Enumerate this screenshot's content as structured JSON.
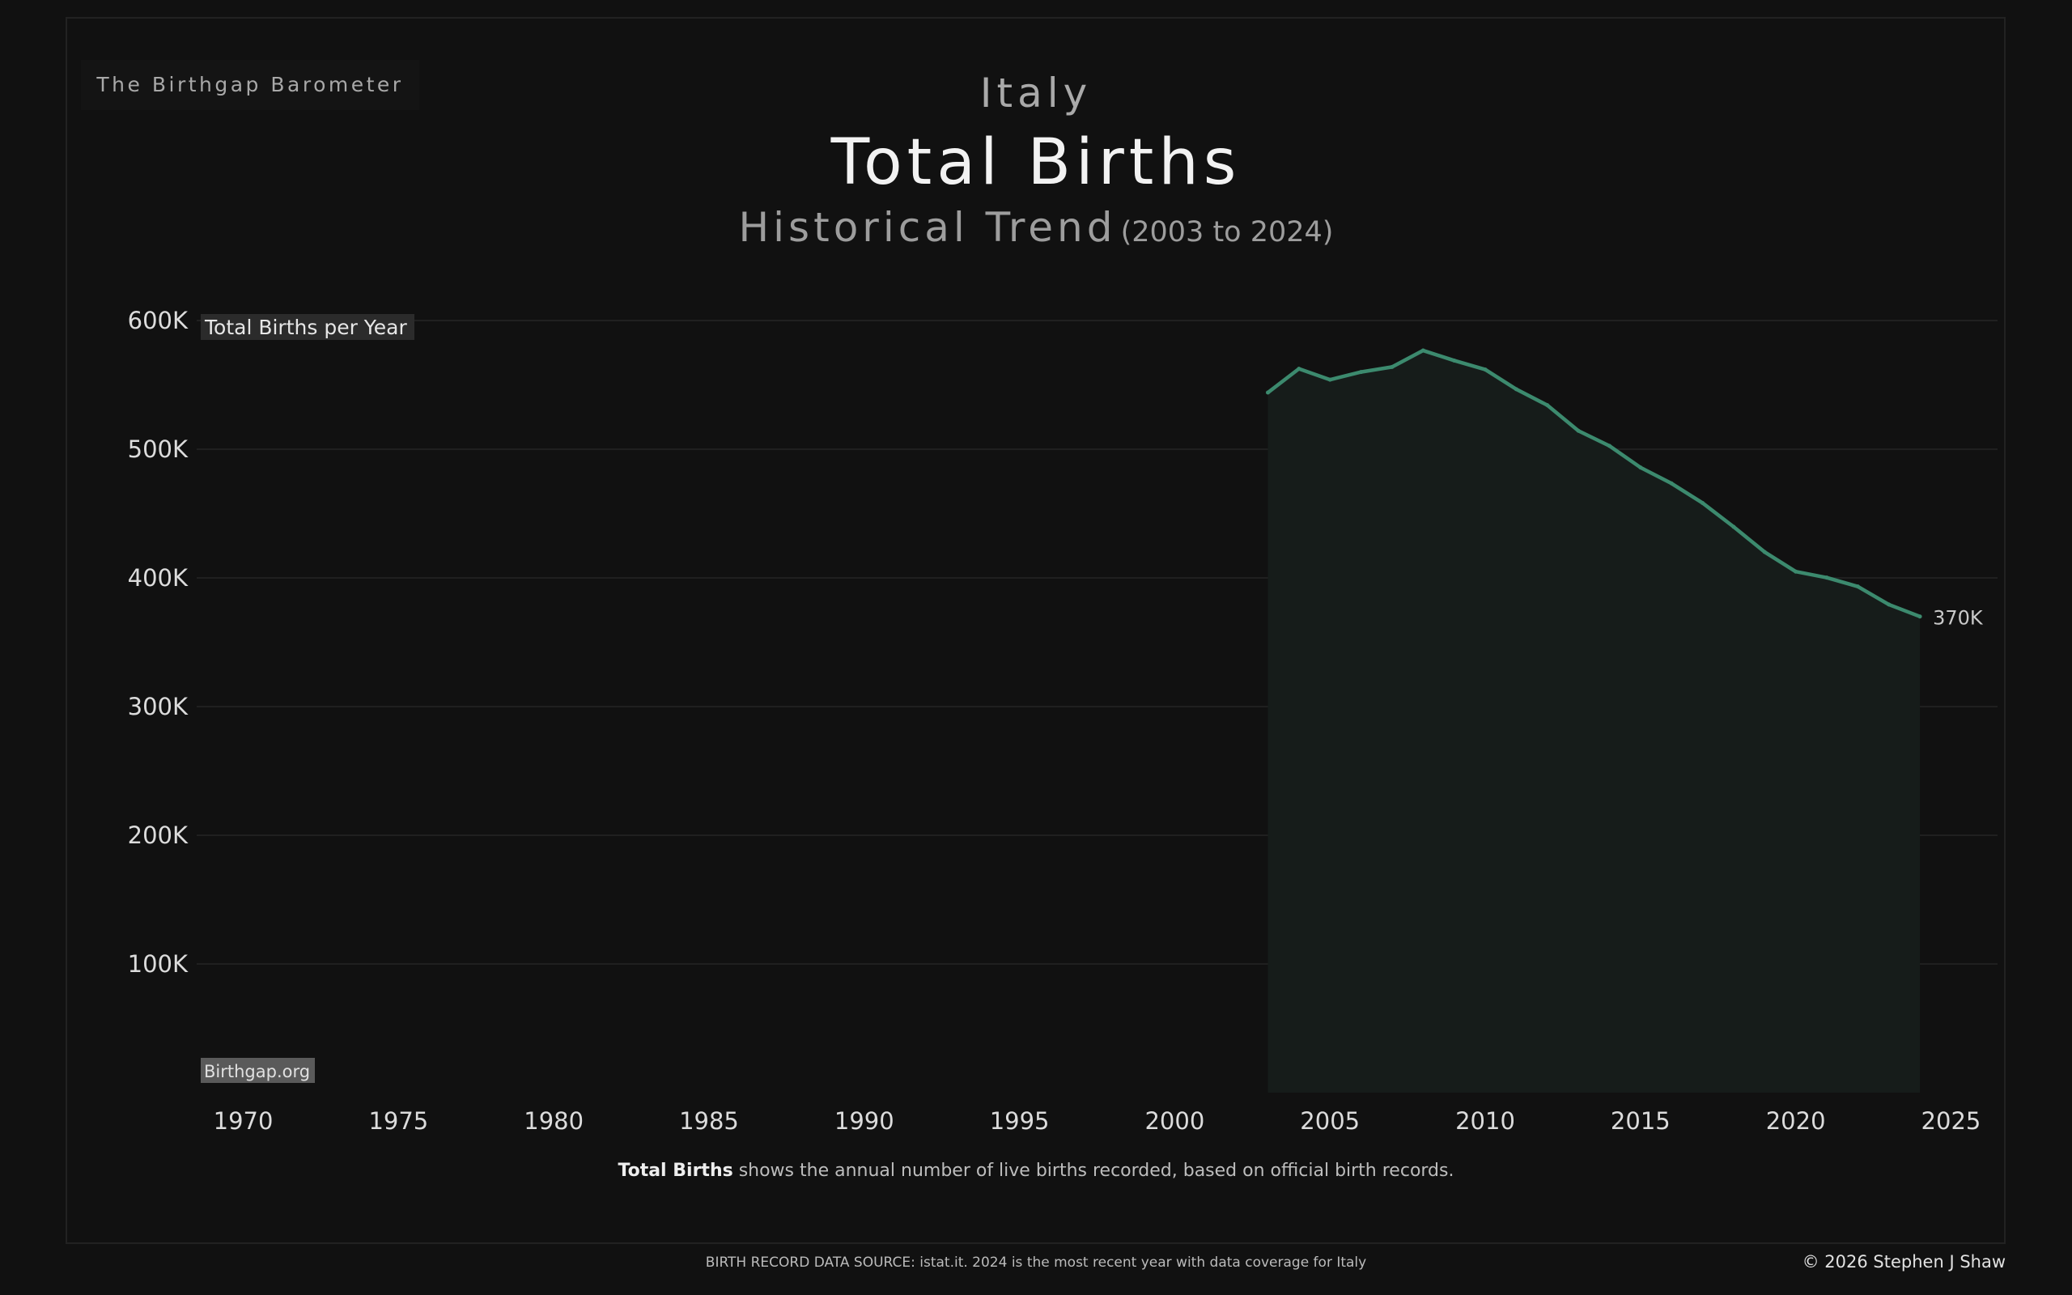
{
  "brand": "The Birthgap Barometer",
  "country": "Italy",
  "title": "Total Births",
  "subtitle": "Historical Trend",
  "subtitle_range": "(2003 to 2024)",
  "caption_bold": "Total Births",
  "caption_rest": " shows the annual number of live births recorded, based on official birth records.",
  "source": "BIRTH RECORD DATA SOURCE: istat.it. 2024 is the most recent year with data coverage for Italy",
  "copyright": "© 2026 Stephen J Shaw",
  "colors": {
    "background": "#111111",
    "line": "#3c8a6e",
    "area": "#161c1a",
    "grid": "#202020"
  },
  "chart_data": {
    "type": "area",
    "measure_label": "Total Births per Year",
    "watermark": "Birthgap.org",
    "end_label": "370K",
    "xlim": [
      1968.5,
      2026.5
    ],
    "ylim": [
      0,
      600000
    ],
    "x_ticks": [
      1970,
      1975,
      1980,
      1985,
      1990,
      1995,
      2000,
      2005,
      2010,
      2015,
      2020,
      2025
    ],
    "y_ticks": [
      {
        "value": 600000,
        "label": "600K"
      },
      {
        "value": 500000,
        "label": "500K"
      },
      {
        "value": 400000,
        "label": "400K"
      },
      {
        "value": 300000,
        "label": "300K"
      },
      {
        "value": 200000,
        "label": "200K"
      },
      {
        "value": 100000,
        "label": "100K"
      }
    ],
    "grid": true,
    "series": [
      {
        "x": [
          2003,
          2004,
          2005,
          2006,
          2007,
          2008,
          2009,
          2010,
          2011,
          2012,
          2013,
          2014,
          2015,
          2016,
          2017,
          2018,
          2019,
          2020,
          2021,
          2022,
          2023,
          2024
        ],
        "y": [
          544000,
          562500,
          554000,
          560000,
          563900,
          576700,
          568900,
          561900,
          546600,
          534200,
          514300,
          502600,
          485800,
          473400,
          458200,
          439700,
          420100,
          404900,
          400200,
          393300,
          379300,
          370000
        ]
      }
    ]
  }
}
